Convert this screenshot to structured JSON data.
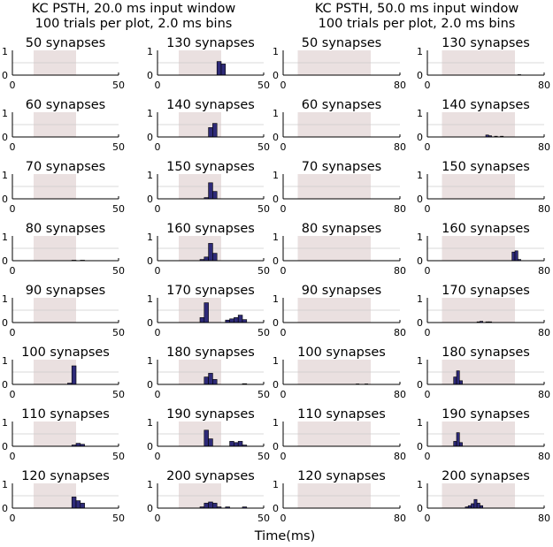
{
  "figure": {
    "left_title": [
      "KC PSTH,  20.0 ms input window",
      "100 trials per plot, 2.0 ms bins"
    ],
    "right_title": [
      "KC PSTH,  50.0 ms input window",
      "100 trials per plot, 2.0 ms bins"
    ],
    "xlabel": "Time(ms)"
  },
  "colors": {
    "bar_fill": "#2e2a78",
    "bar_edge": "#000000",
    "shade": "#eae0e0",
    "refline": "#cccccc",
    "axis": "#000000"
  },
  "chart_data": [
    {
      "type": "bar",
      "title": "KC PSTH,  20.0 ms input window",
      "subtitle": "100 trials per plot, 2.0 ms bins",
      "xlabel": "Time(ms)",
      "xlim": [
        0,
        50
      ],
      "ylim": [
        0,
        1
      ],
      "xticks": [
        "0",
        "50"
      ],
      "yticks": [
        "0",
        "1"
      ],
      "bin_width_ms": 2.0,
      "input_window_ms": [
        10,
        30
      ],
      "reference_line_y": 0.5,
      "panels": [
        {
          "label": "50 synapses",
          "bins": []
        },
        {
          "label": "60 synapses",
          "bins": []
        },
        {
          "label": "70 synapses",
          "bins": []
        },
        {
          "label": "80 synapses",
          "bins": [
            [
              28,
              0.02
            ],
            [
              32,
              0.02
            ]
          ]
        },
        {
          "label": "90 synapses",
          "bins": []
        },
        {
          "label": "100 synapses",
          "bins": [
            [
              26,
              0.05
            ],
            [
              28,
              0.75
            ]
          ]
        },
        {
          "label": "110 synapses",
          "bins": [
            [
              28,
              0.05
            ],
            [
              30,
              0.12
            ],
            [
              32,
              0.08
            ]
          ]
        },
        {
          "label": "120 synapses",
          "bins": [
            [
              28,
              0.45
            ],
            [
              30,
              0.3
            ],
            [
              32,
              0.2
            ]
          ]
        },
        {
          "label": "130 synapses",
          "bins": [
            [
              28,
              0.55
            ],
            [
              30,
              0.45
            ]
          ]
        },
        {
          "label": "140 synapses",
          "bins": [
            [
              24,
              0.38
            ],
            [
              26,
              0.55
            ]
          ]
        },
        {
          "label": "150 synapses",
          "bins": [
            [
              22,
              0.05
            ],
            [
              24,
              0.65
            ],
            [
              26,
              0.3
            ]
          ]
        },
        {
          "label": "160 synapses",
          "bins": [
            [
              20,
              0.05
            ],
            [
              22,
              0.15
            ],
            [
              24,
              0.7
            ],
            [
              26,
              0.3
            ]
          ]
        },
        {
          "label": "170 synapses",
          "bins": [
            [
              20,
              0.2
            ],
            [
              22,
              0.8
            ],
            [
              32,
              0.1
            ],
            [
              34,
              0.15
            ],
            [
              36,
              0.2
            ],
            [
              38,
              0.3
            ],
            [
              40,
              0.12
            ]
          ]
        },
        {
          "label": "180 synapses",
          "bins": [
            [
              22,
              0.3
            ],
            [
              24,
              0.45
            ],
            [
              26,
              0.2
            ],
            [
              40,
              0.03
            ]
          ]
        },
        {
          "label": "190 synapses",
          "bins": [
            [
              22,
              0.65
            ],
            [
              24,
              0.3
            ],
            [
              34,
              0.2
            ],
            [
              36,
              0.15
            ],
            [
              38,
              0.2
            ],
            [
              40,
              0.05
            ]
          ]
        },
        {
          "label": "200 synapses",
          "bins": [
            [
              20,
              0.05
            ],
            [
              22,
              0.2
            ],
            [
              24,
              0.25
            ],
            [
              26,
              0.2
            ],
            [
              28,
              0.05
            ],
            [
              32,
              0.05
            ],
            [
              40,
              0.05
            ]
          ]
        }
      ]
    },
    {
      "type": "bar",
      "title": "KC PSTH,  50.0 ms input window",
      "subtitle": "100 trials per plot, 2.0 ms bins",
      "xlabel": "Time(ms)",
      "xlim": [
        0,
        80
      ],
      "ylim": [
        0,
        1
      ],
      "xticks": [
        "0",
        "80"
      ],
      "yticks": [
        "0",
        "1"
      ],
      "bin_width_ms": 2.0,
      "input_window_ms": [
        10,
        60
      ],
      "reference_line_y": 0.5,
      "panels": [
        {
          "label": "50 synapses",
          "bins": []
        },
        {
          "label": "60 synapses",
          "bins": []
        },
        {
          "label": "70 synapses",
          "bins": []
        },
        {
          "label": "80 synapses",
          "bins": []
        },
        {
          "label": "90 synapses",
          "bins": []
        },
        {
          "label": "100 synapses",
          "bins": [
            [
              50,
              0.02
            ],
            [
              56,
              0.02
            ]
          ]
        },
        {
          "label": "110 synapses",
          "bins": []
        },
        {
          "label": "120 synapses",
          "bins": []
        },
        {
          "label": "130 synapses",
          "bins": [
            [
              62,
              0.02
            ]
          ]
        },
        {
          "label": "140 synapses",
          "bins": [
            [
              40,
              0.08
            ],
            [
              42,
              0.05
            ],
            [
              46,
              0.03
            ],
            [
              50,
              0.03
            ]
          ]
        },
        {
          "label": "150 synapses",
          "bins": []
        },
        {
          "label": "160 synapses",
          "bins": [
            [
              58,
              0.35
            ],
            [
              60,
              0.4
            ],
            [
              62,
              0.05
            ]
          ]
        },
        {
          "label": "170 synapses",
          "bins": [
            [
              34,
              0.03
            ],
            [
              36,
              0.05
            ],
            [
              40,
              0.03
            ],
            [
              42,
              0.03
            ]
          ]
        },
        {
          "label": "180 synapses",
          "bins": [
            [
              18,
              0.3
            ],
            [
              20,
              0.55
            ],
            [
              22,
              0.15
            ]
          ]
        },
        {
          "label": "190 synapses",
          "bins": [
            [
              18,
              0.2
            ],
            [
              20,
              0.55
            ],
            [
              22,
              0.15
            ]
          ]
        },
        {
          "label": "200 synapses",
          "bins": [
            [
              26,
              0.05
            ],
            [
              28,
              0.1
            ],
            [
              30,
              0.18
            ],
            [
              32,
              0.35
            ],
            [
              34,
              0.2
            ],
            [
              36,
              0.1
            ]
          ]
        }
      ]
    }
  ]
}
